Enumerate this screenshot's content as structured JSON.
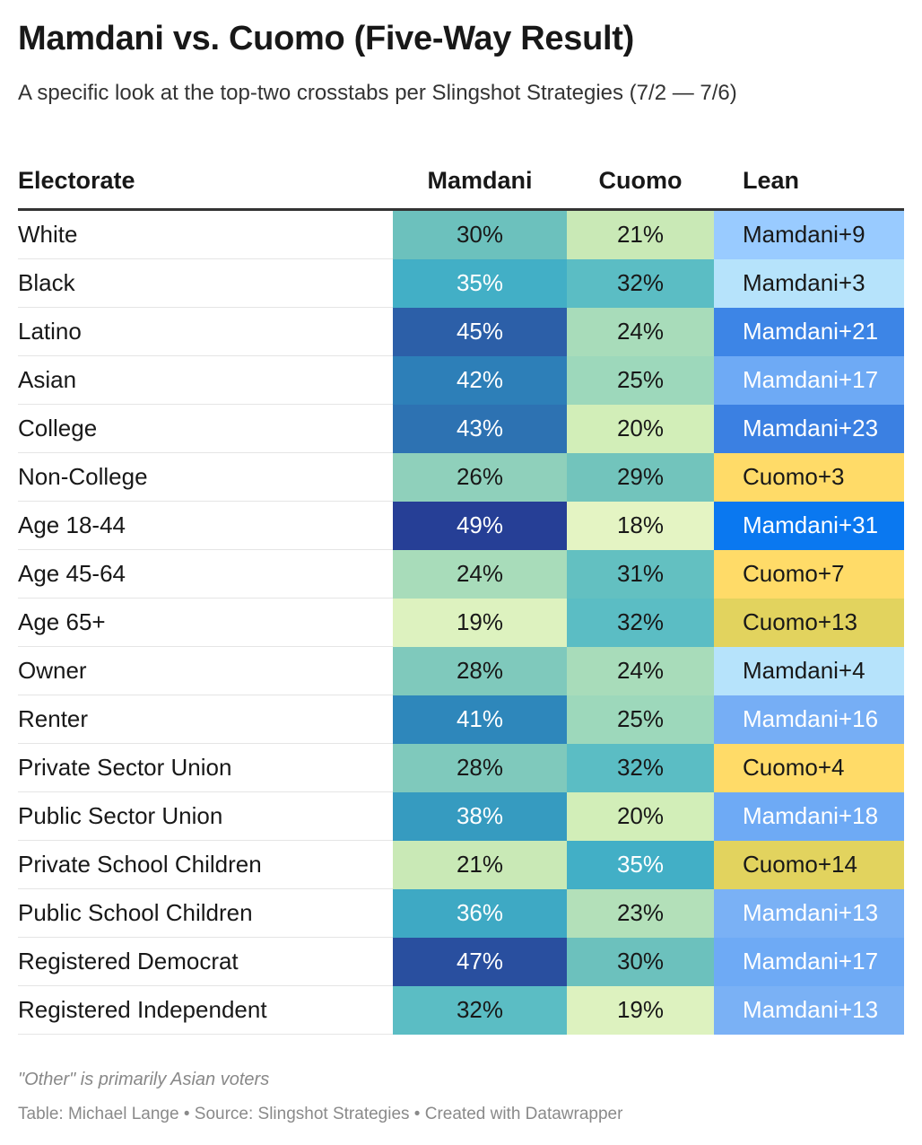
{
  "title": "Mamdani vs. Cuomo (Five-Way Result)",
  "subtitle": "A specific look at the top-two crosstabs per Slingshot Strategies (7/2 — 7/6)",
  "note": "\"Other\" is primarily Asian voters",
  "footer": "Table: Michael Lange • Source: Slingshot Strategies • Created with Datawrapper",
  "chart_data": {
    "type": "table",
    "columns": [
      "Electorate",
      "Mamdani",
      "Cuomo",
      "Lean"
    ],
    "rows": [
      {
        "electorate": "White",
        "mamdani": "30%",
        "cuomo": "21%",
        "lean": "Mamdani+9",
        "mamdani_color": "#6cc1bd",
        "cuomo_color": "#c9e9b6",
        "lean_color": "#99cbff",
        "mamdani_text": "#181818",
        "cuomo_text": "#181818",
        "lean_text": "#181818"
      },
      {
        "electorate": "Black",
        "mamdani": "35%",
        "cuomo": "32%",
        "lean": "Mamdani+3",
        "mamdani_color": "#42afc6",
        "cuomo_color": "#5bbdc4",
        "lean_color": "#b6e3fb",
        "mamdani_text": "#ffffff",
        "cuomo_text": "#181818",
        "lean_text": "#181818"
      },
      {
        "electorate": "Latino",
        "mamdani": "45%",
        "cuomo": "24%",
        "lean": "Mamdani+21",
        "mamdani_color": "#2c5fa8",
        "cuomo_color": "#a8dcba",
        "lean_color": "#3d85e6",
        "mamdani_text": "#ffffff",
        "cuomo_text": "#181818",
        "lean_text": "#ffffff"
      },
      {
        "electorate": "Asian",
        "mamdani": "42%",
        "cuomo": "25%",
        "lean": "Mamdani+17",
        "mamdani_color": "#2d7fb8",
        "cuomo_color": "#9dd8bb",
        "lean_color": "#6eaaf5",
        "mamdani_text": "#ffffff",
        "cuomo_text": "#181818",
        "lean_text": "#ffffff"
      },
      {
        "electorate": "College",
        "mamdani": "43%",
        "cuomo": "20%",
        "lean": "Mamdani+23",
        "mamdani_color": "#2d72b2",
        "cuomo_color": "#d2eeb8",
        "lean_color": "#3b80e2",
        "mamdani_text": "#ffffff",
        "cuomo_text": "#181818",
        "lean_text": "#ffffff"
      },
      {
        "electorate": "Non-College",
        "mamdani": "26%",
        "cuomo": "29%",
        "lean": "Cuomo+3",
        "mamdani_color": "#8fd0bb",
        "cuomo_color": "#72c4bc",
        "lean_color": "#ffdb68",
        "mamdani_text": "#181818",
        "cuomo_text": "#181818",
        "lean_text": "#181818"
      },
      {
        "electorate": "Age 18-44",
        "mamdani": "49%",
        "cuomo": "18%",
        "lean": "Mamdani+31",
        "mamdani_color": "#263f96",
        "cuomo_color": "#e4f4c3",
        "lean_color": "#0a78f0",
        "mamdani_text": "#ffffff",
        "cuomo_text": "#181818",
        "lean_text": "#ffffff"
      },
      {
        "electorate": "Age 45-64",
        "mamdani": "24%",
        "cuomo": "31%",
        "lean": "Cuomo+7",
        "mamdani_color": "#a8dcba",
        "cuomo_color": "#63c0c1",
        "lean_color": "#ffdb68",
        "mamdani_text": "#181818",
        "cuomo_text": "#181818",
        "lean_text": "#181818"
      },
      {
        "electorate": "Age 65+",
        "mamdani": "19%",
        "cuomo": "32%",
        "lean": "Cuomo+13",
        "mamdani_color": "#ddf2bf",
        "cuomo_color": "#5bbdc4",
        "lean_color": "#e2d35e",
        "mamdani_text": "#181818",
        "cuomo_text": "#181818",
        "lean_text": "#181818"
      },
      {
        "electorate": "Owner",
        "mamdani": "28%",
        "cuomo": "24%",
        "lean": "Mamdani+4",
        "mamdani_color": "#7fc9bc",
        "cuomo_color": "#a8dcba",
        "lean_color": "#b6e3fb",
        "mamdani_text": "#181818",
        "cuomo_text": "#181818",
        "lean_text": "#181818"
      },
      {
        "electorate": "Renter",
        "mamdani": "41%",
        "cuomo": "25%",
        "lean": "Mamdani+16",
        "mamdani_color": "#2e87bb",
        "cuomo_color": "#9dd8bb",
        "lean_color": "#76aef5",
        "mamdani_text": "#ffffff",
        "cuomo_text": "#181818",
        "lean_text": "#ffffff"
      },
      {
        "electorate": "Private Sector Union",
        "mamdani": "28%",
        "cuomo": "32%",
        "lean": "Cuomo+4",
        "mamdani_color": "#7fc9bc",
        "cuomo_color": "#5bbdc4",
        "lean_color": "#ffdb68",
        "mamdani_text": "#181818",
        "cuomo_text": "#181818",
        "lean_text": "#181818"
      },
      {
        "electorate": "Public Sector Union",
        "mamdani": "38%",
        "cuomo": "20%",
        "lean": "Mamdani+18",
        "mamdani_color": "#369bc0",
        "cuomo_color": "#d2eeb8",
        "lean_color": "#6eaaf5",
        "mamdani_text": "#ffffff",
        "cuomo_text": "#181818",
        "lean_text": "#ffffff"
      },
      {
        "electorate": "Private School Children",
        "mamdani": "21%",
        "cuomo": "35%",
        "lean": "Cuomo+14",
        "mamdani_color": "#c9e9b6",
        "cuomo_color": "#42afc6",
        "lean_color": "#e2d35e",
        "mamdani_text": "#181818",
        "cuomo_text": "#ffffff",
        "lean_text": "#181818"
      },
      {
        "electorate": "Public School Children",
        "mamdani": "36%",
        "cuomo": "23%",
        "lean": "Mamdani+13",
        "mamdani_color": "#3ea9c4",
        "cuomo_color": "#b3e0b9",
        "lean_color": "#7ab1f5",
        "mamdani_text": "#ffffff",
        "cuomo_text": "#181818",
        "lean_text": "#ffffff"
      },
      {
        "electorate": "Registered Democrat",
        "mamdani": "47%",
        "cuomo": "30%",
        "lean": "Mamdani+17",
        "mamdani_color": "#294f9f",
        "cuomo_color": "#6cc1bd",
        "lean_color": "#6eaaf5",
        "mamdani_text": "#ffffff",
        "cuomo_text": "#181818",
        "lean_text": "#ffffff"
      },
      {
        "electorate": "Registered Independent",
        "mamdani": "32%",
        "cuomo": "19%",
        "lean": "Mamdani+13",
        "mamdani_color": "#5bbdc4",
        "cuomo_color": "#ddf2bf",
        "lean_color": "#7ab1f5",
        "mamdani_text": "#181818",
        "cuomo_text": "#181818",
        "lean_text": "#ffffff"
      }
    ]
  }
}
